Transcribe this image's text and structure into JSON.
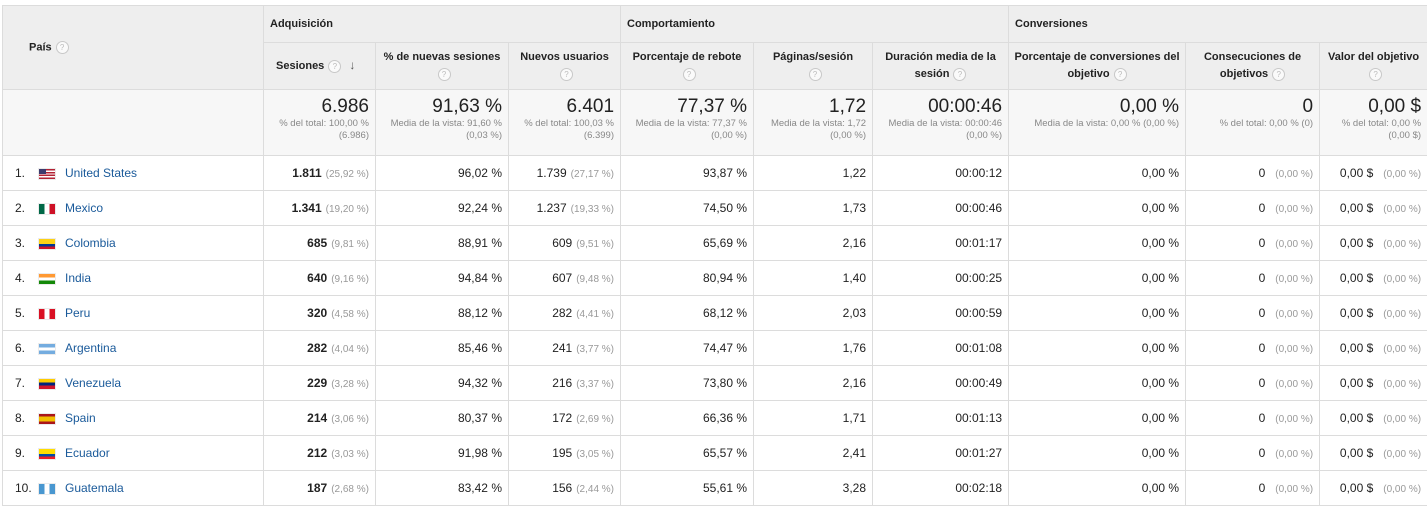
{
  "header": {
    "country": "País",
    "groups": [
      "Adquisición",
      "Comportamiento",
      "Conversiones"
    ],
    "metrics": [
      "Sesiones",
      "% de nuevas sesiones",
      "Nuevos usuarios",
      "Porcentaje de rebote",
      "Páginas/sesión",
      "Duración media de la sesión",
      "Porcentaje de conversiones del objetivo",
      "Consecuciones de objetivos",
      "Valor del objetivo"
    ],
    "help_glyph": "?",
    "sort_glyph": "↓"
  },
  "totals": [
    {
      "value": "6.986",
      "sub": "% del total: 100,00 % (6.986)"
    },
    {
      "value": "91,63 %",
      "sub": "Media de la vista: 91,60 % (0,03 %)"
    },
    {
      "value": "6.401",
      "sub": "% del total: 100,03 % (6.399)"
    },
    {
      "value": "77,37 %",
      "sub": "Media de la vista: 77,37 % (0,00 %)"
    },
    {
      "value": "1,72",
      "sub": "Media de la vista: 1,72 (0,00 %)"
    },
    {
      "value": "00:00:46",
      "sub": "Media de la vista: 00:00:46 (0,00 %)"
    },
    {
      "value": "0,00 %",
      "sub": "Media de la vista: 0,00 % (0,00 %)"
    },
    {
      "value": "0",
      "sub": "% del total: 0,00 % (0)"
    },
    {
      "value": "0,00 $",
      "sub": "% del total: 0,00 % (0,00 $)"
    }
  ],
  "rows": [
    {
      "num": "1.",
      "country": "United States",
      "flag": "us-flag-icon",
      "sessions": "1.811",
      "sessions_pct": "(25,92 %)",
      "new_sessions": "96,02 %",
      "new_users": "1.739",
      "new_users_pct": "(27,17 %)",
      "bounce": "93,87 %",
      "pages": "1,22",
      "duration": "00:00:12",
      "conv_rate": "0,00 %",
      "goals": "0",
      "goals_pct": "(0,00 %)",
      "value": "0,00 $",
      "value_pct": "(0,00 %)"
    },
    {
      "num": "2.",
      "country": "Mexico",
      "flag": "mx-flag-icon",
      "sessions": "1.341",
      "sessions_pct": "(19,20 %)",
      "new_sessions": "92,24 %",
      "new_users": "1.237",
      "new_users_pct": "(19,33 %)",
      "bounce": "74,50 %",
      "pages": "1,73",
      "duration": "00:00:46",
      "conv_rate": "0,00 %",
      "goals": "0",
      "goals_pct": "(0,00 %)",
      "value": "0,00 $",
      "value_pct": "(0,00 %)"
    },
    {
      "num": "3.",
      "country": "Colombia",
      "flag": "co-flag-icon",
      "sessions": "685",
      "sessions_pct": "(9,81 %)",
      "new_sessions": "88,91 %",
      "new_users": "609",
      "new_users_pct": "(9,51 %)",
      "bounce": "65,69 %",
      "pages": "2,16",
      "duration": "00:01:17",
      "conv_rate": "0,00 %",
      "goals": "0",
      "goals_pct": "(0,00 %)",
      "value": "0,00 $",
      "value_pct": "(0,00 %)"
    },
    {
      "num": "4.",
      "country": "India",
      "flag": "in-flag-icon",
      "sessions": "640",
      "sessions_pct": "(9,16 %)",
      "new_sessions": "94,84 %",
      "new_users": "607",
      "new_users_pct": "(9,48 %)",
      "bounce": "80,94 %",
      "pages": "1,40",
      "duration": "00:00:25",
      "conv_rate": "0,00 %",
      "goals": "0",
      "goals_pct": "(0,00 %)",
      "value": "0,00 $",
      "value_pct": "(0,00 %)"
    },
    {
      "num": "5.",
      "country": "Peru",
      "flag": "pe-flag-icon",
      "sessions": "320",
      "sessions_pct": "(4,58 %)",
      "new_sessions": "88,12 %",
      "new_users": "282",
      "new_users_pct": "(4,41 %)",
      "bounce": "68,12 %",
      "pages": "2,03",
      "duration": "00:00:59",
      "conv_rate": "0,00 %",
      "goals": "0",
      "goals_pct": "(0,00 %)",
      "value": "0,00 $",
      "value_pct": "(0,00 %)"
    },
    {
      "num": "6.",
      "country": "Argentina",
      "flag": "ar-flag-icon",
      "sessions": "282",
      "sessions_pct": "(4,04 %)",
      "new_sessions": "85,46 %",
      "new_users": "241",
      "new_users_pct": "(3,77 %)",
      "bounce": "74,47 %",
      "pages": "1,76",
      "duration": "00:01:08",
      "conv_rate": "0,00 %",
      "goals": "0",
      "goals_pct": "(0,00 %)",
      "value": "0,00 $",
      "value_pct": "(0,00 %)"
    },
    {
      "num": "7.",
      "country": "Venezuela",
      "flag": "ve-flag-icon",
      "sessions": "229",
      "sessions_pct": "(3,28 %)",
      "new_sessions": "94,32 %",
      "new_users": "216",
      "new_users_pct": "(3,37 %)",
      "bounce": "73,80 %",
      "pages": "2,16",
      "duration": "00:00:49",
      "conv_rate": "0,00 %",
      "goals": "0",
      "goals_pct": "(0,00 %)",
      "value": "0,00 $",
      "value_pct": "(0,00 %)"
    },
    {
      "num": "8.",
      "country": "Spain",
      "flag": "es-flag-icon",
      "sessions": "214",
      "sessions_pct": "(3,06 %)",
      "new_sessions": "80,37 %",
      "new_users": "172",
      "new_users_pct": "(2,69 %)",
      "bounce": "66,36 %",
      "pages": "1,71",
      "duration": "00:01:13",
      "conv_rate": "0,00 %",
      "goals": "0",
      "goals_pct": "(0,00 %)",
      "value": "0,00 $",
      "value_pct": "(0,00 %)"
    },
    {
      "num": "9.",
      "country": "Ecuador",
      "flag": "ec-flag-icon",
      "sessions": "212",
      "sessions_pct": "(3,03 %)",
      "new_sessions": "91,98 %",
      "new_users": "195",
      "new_users_pct": "(3,05 %)",
      "bounce": "65,57 %",
      "pages": "2,41",
      "duration": "00:01:27",
      "conv_rate": "0,00 %",
      "goals": "0",
      "goals_pct": "(0,00 %)",
      "value": "0,00 $",
      "value_pct": "(0,00 %)"
    },
    {
      "num": "10.",
      "country": "Guatemala",
      "flag": "gt-flag-icon",
      "sessions": "187",
      "sessions_pct": "(2,68 %)",
      "new_sessions": "83,42 %",
      "new_users": "156",
      "new_users_pct": "(2,44 %)",
      "bounce": "55,61 %",
      "pages": "3,28",
      "duration": "00:02:18",
      "conv_rate": "0,00 %",
      "goals": "0",
      "goals_pct": "(0,00 %)",
      "value": "0,00 $",
      "value_pct": "(0,00 %)"
    }
  ],
  "colors": {
    "header_bg": "#eeeeee",
    "totals_bg": "#f7f7f7",
    "border": "#dcdcdc",
    "link": "#1a5a9a"
  }
}
